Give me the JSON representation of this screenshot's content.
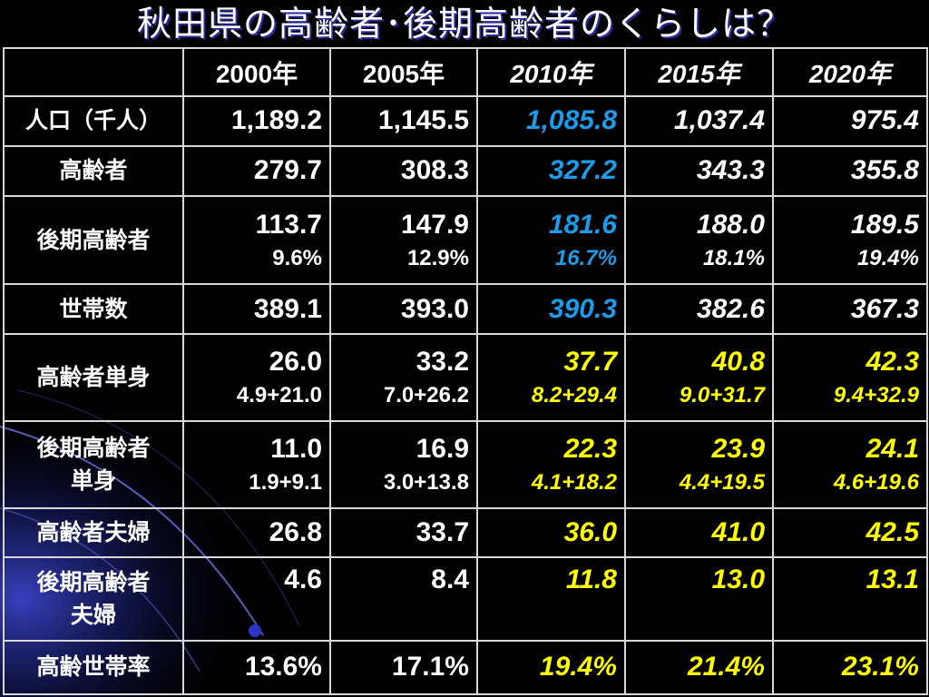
{
  "title": "秋田県の高齢者･後期高齢者のくらしは？",
  "colors": {
    "background": "#000000",
    "text": "#ffffff",
    "highlight_blue": "#1e9be8",
    "highlight_yellow": "#ffff00",
    "grid": "#d8d8d8"
  },
  "table": {
    "headers": [
      "",
      "2000年",
      "2005年",
      "2010年",
      "2015年",
      "2020年"
    ],
    "rows": [
      {
        "label": [
          "人口（千人）"
        ],
        "cells": [
          {
            "main": "1,189.2"
          },
          {
            "main": "1,145.5"
          },
          {
            "main": "1,085.8"
          },
          {
            "main": "1,037.4"
          },
          {
            "main": "975.4"
          }
        ]
      },
      {
        "label": [
          "高齢者"
        ],
        "cells": [
          {
            "main": "279.7"
          },
          {
            "main": "308.3"
          },
          {
            "main": "327.2"
          },
          {
            "main": "343.3"
          },
          {
            "main": "355.8"
          }
        ]
      },
      {
        "label": [
          "後期高齢者"
        ],
        "cells": [
          {
            "main": "113.7",
            "sub": "9.6%"
          },
          {
            "main": "147.9",
            "sub": "12.9%"
          },
          {
            "main": "181.6",
            "sub": "16.7%"
          },
          {
            "main": "188.0",
            "sub": "18.1%"
          },
          {
            "main": "189.5",
            "sub": "19.4%"
          }
        ]
      },
      {
        "label": [
          "世帯数"
        ],
        "cells": [
          {
            "main": "389.1"
          },
          {
            "main": "393.0"
          },
          {
            "main": "390.3"
          },
          {
            "main": "382.6"
          },
          {
            "main": "367.3"
          }
        ]
      },
      {
        "label": [
          "高齢者単身"
        ],
        "cells": [
          {
            "main": "26.0",
            "sub": "4.9+21.0"
          },
          {
            "main": "33.2",
            "sub": "7.0+26.2"
          },
          {
            "main": "37.7",
            "sub": "8.2+29.4"
          },
          {
            "main": "40.8",
            "sub": "9.0+31.7"
          },
          {
            "main": "42.3",
            "sub": "9.4+32.9"
          }
        ]
      },
      {
        "label": [
          "後期高齢者",
          "単身"
        ],
        "cells": [
          {
            "main": "11.0",
            "sub": "1.9+9.1"
          },
          {
            "main": "16.9",
            "sub": "3.0+13.8"
          },
          {
            "main": "22.3",
            "sub": "4.1+18.2"
          },
          {
            "main": "23.9",
            "sub": "4.4+19.5"
          },
          {
            "main": "24.1",
            "sub": "4.6+19.6"
          }
        ]
      },
      {
        "label": [
          "高齢者夫婦"
        ],
        "cells": [
          {
            "main": "26.8"
          },
          {
            "main": "33.7"
          },
          {
            "main": "36.0"
          },
          {
            "main": "41.0"
          },
          {
            "main": "42.5"
          }
        ]
      },
      {
        "label": [
          "後期高齢者",
          "夫婦"
        ],
        "cells": [
          {
            "main": "4.6"
          },
          {
            "main": "8.4"
          },
          {
            "main": "11.8"
          },
          {
            "main": "13.0"
          },
          {
            "main": "13.1"
          }
        ]
      },
      {
        "label": [
          "高齢世帯率"
        ],
        "cells": [
          {
            "main": "13.6%"
          },
          {
            "main": "17.1%"
          },
          {
            "main": "19.4%"
          },
          {
            "main": "21.4%"
          },
          {
            "main": "23.1%"
          }
        ]
      }
    ]
  }
}
